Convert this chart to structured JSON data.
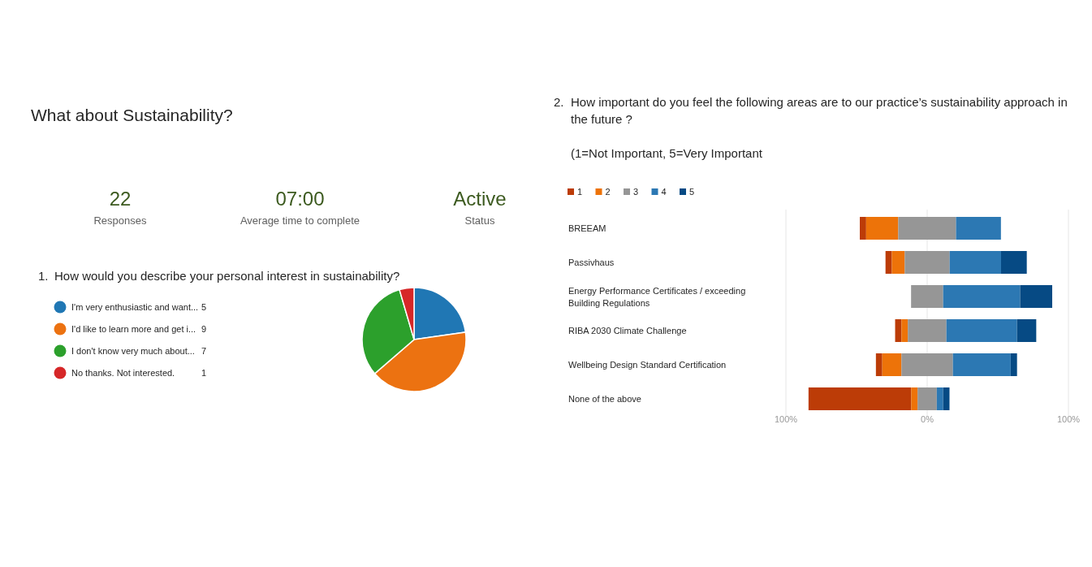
{
  "chart_data": [
    {
      "type": "other",
      "title": "What about Sustainability?",
      "annotations": [
        "22",
        "Responses",
        "07:00",
        "Average time to complete",
        "Active",
        "Status"
      ]
    },
    {
      "type": "pie",
      "title": "1. How would you describe your personal interest in sustainability?",
      "categories": [
        "I'm very enthusiastic and want...",
        "I'd like to learn more and get i...",
        "I don't know very much about...",
        "No thanks. Not interested."
      ],
      "values": [
        5,
        9,
        7,
        1
      ],
      "colors": [
        "#2077b4",
        "#ec7211",
        "#2ca02c",
        "#d62728"
      ],
      "legend": "left",
      "data_labels": true
    },
    {
      "type": "bar",
      "orientation": "horizontal",
      "title": "2. How important do you feel the following areas are to our practice’s sustainability approach in the future ?",
      "subtitle": "(1=Not Important, 5=Very Important",
      "categories": [
        "BREEAM",
        "Passivhaus",
        "Energy Performance Certificates / exceeding Building Regulations",
        "RIBA 2030 Climate Challenge",
        "Wellbeing Design Standard Certification",
        "None of the above"
      ],
      "series": [
        {
          "name": "1",
          "color": "#bc3c07",
          "values": [
            4.5,
            4.5,
            null,
            4.5,
            4.5,
            72.7
          ],
          "base": [
            -47.7,
            -29.5,
            null,
            -22.7,
            -36.3,
            -84
          ]
        },
        {
          "name": "2",
          "color": "#ed7309",
          "values": [
            22.7,
            9.1,
            null,
            4.5,
            13.6,
            4.5
          ],
          "base": [
            -43.2,
            -25.0,
            null,
            -18.2,
            -31.8,
            -11.3
          ]
        },
        {
          "name": "3",
          "color": "#969696",
          "values": [
            40.9,
            31.8,
            22.7,
            27.3,
            36.4,
            13.6
          ],
          "base": [
            -20.5,
            -15.9,
            -11.4,
            -13.7,
            -18.2,
            -6.8
          ]
        },
        {
          "name": "4",
          "color": "#2c78b3",
          "values": [
            31.8,
            36.4,
            54.5,
            50,
            40.9,
            4.5
          ],
          "base": [
            20.4,
            15.9,
            11.3,
            13.6,
            18.2,
            6.8
          ]
        },
        {
          "name": "5",
          "color": "#064a84",
          "values": [
            null,
            18.2,
            22.7,
            13.6,
            4.5,
            4.5
          ],
          "base": [
            null,
            52.3,
            65.8,
            63.6,
            59.1,
            11.3
          ]
        }
      ],
      "xlim": [
        -100,
        100
      ],
      "xticks": [
        {
          "value": -100,
          "label": "100%"
        },
        {
          "value": 0,
          "label": "0%"
        },
        {
          "value": 100,
          "label": "100%"
        }
      ],
      "grid": "x",
      "legend": "top left"
    }
  ]
}
